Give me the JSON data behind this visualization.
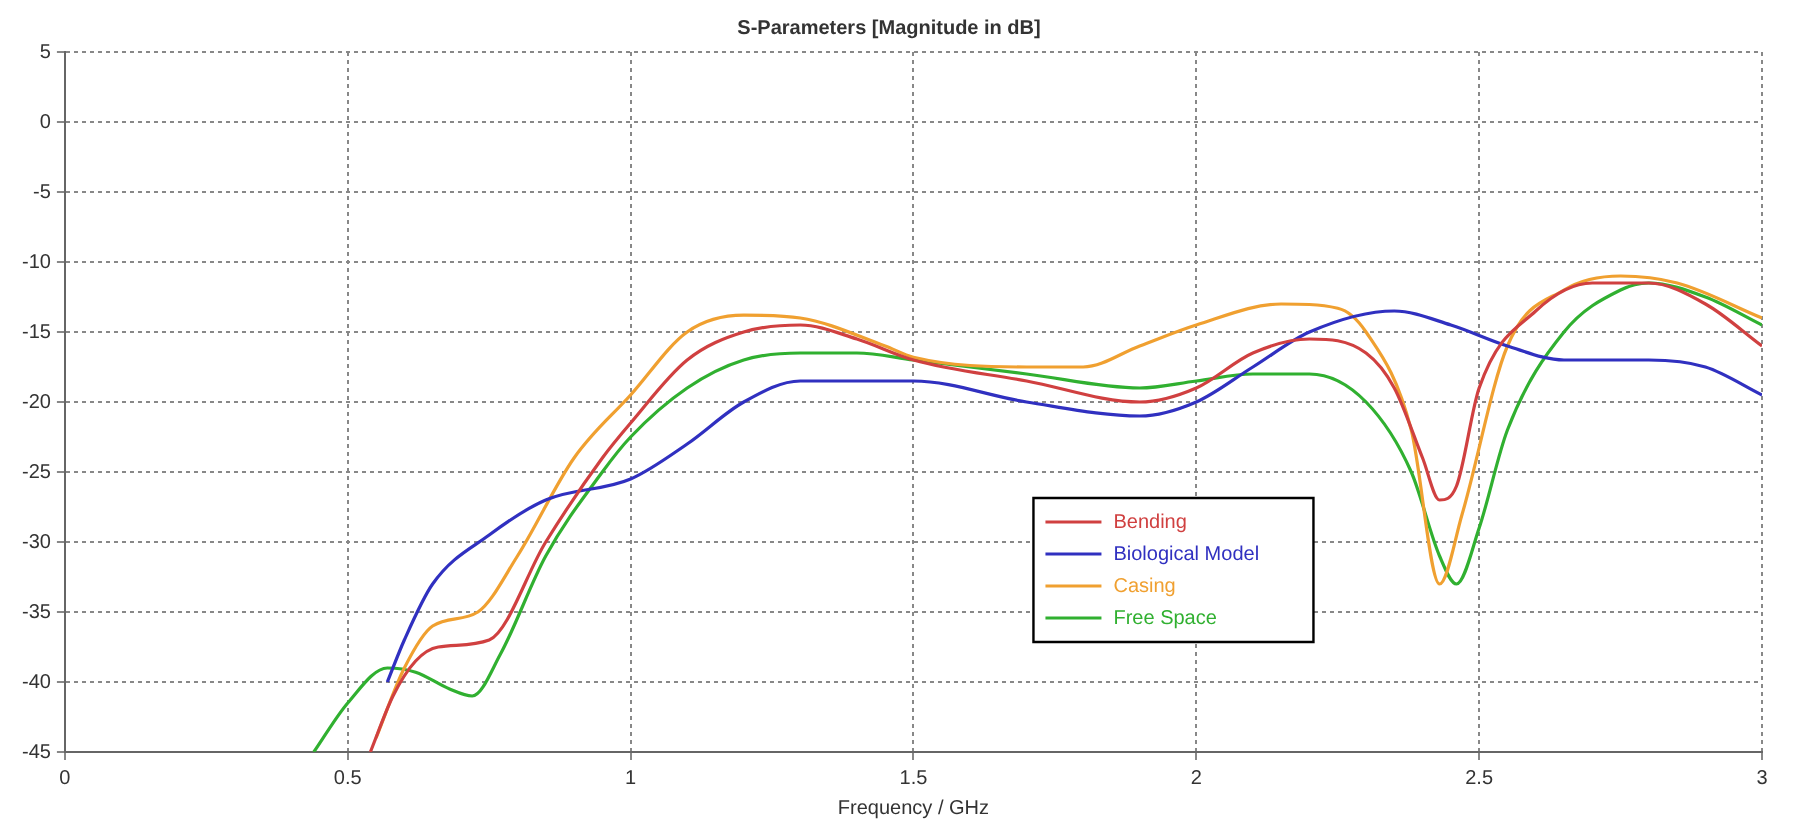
{
  "chart_data": {
    "type": "line",
    "title": "S-Parameters [Magnitude in dB]",
    "xlabel": "Frequency / GHz",
    "xlim": [
      0,
      3
    ],
    "xticks": [
      0,
      0.5,
      1,
      1.5,
      2,
      2.5,
      3
    ],
    "ylim": [
      -45,
      5
    ],
    "yticks": [
      -45,
      -40,
      -35,
      -30,
      -25,
      -20,
      -15,
      -10,
      -5,
      0,
      5
    ],
    "grid": true,
    "line_style": "solid",
    "marker": "none",
    "legend": "bottom",
    "series": [
      {
        "name": "Bending",
        "color": "#d04040",
        "x": [
          0.54,
          0.58,
          0.62,
          0.66,
          0.75,
          0.85,
          0.95,
          1.0,
          1.1,
          1.2,
          1.3,
          1.4,
          1.5,
          1.7,
          1.9,
          2.0,
          2.1,
          2.2,
          2.3,
          2.35,
          2.4,
          2.43,
          2.46,
          2.5,
          2.6,
          2.7,
          2.8,
          2.9,
          3.0
        ],
        "values": [
          -45,
          -41,
          -38.5,
          -37.5,
          -37,
          -30,
          -24,
          -21.5,
          -17,
          -15,
          -14.5,
          -15.5,
          -17,
          -18.5,
          -20,
          -19,
          -16.5,
          -15.5,
          -16.5,
          -19,
          -24,
          -27,
          -26,
          -19,
          -13.5,
          -11.5,
          -11.5,
          -13,
          -16
        ]
      },
      {
        "name": "Biological Model",
        "color": "#3030c0",
        "x": [
          0.57,
          0.6,
          0.65,
          0.75,
          0.85,
          1.0,
          1.1,
          1.2,
          1.3,
          1.5,
          1.7,
          1.9,
          2.0,
          2.1,
          2.2,
          2.35,
          2.45,
          2.55,
          2.65,
          2.8,
          2.9,
          3.0
        ],
        "values": [
          -40,
          -37,
          -33,
          -29.5,
          -27,
          -25.5,
          -23,
          -20,
          -18.5,
          -18.5,
          -20,
          -21,
          -20,
          -17.5,
          -15,
          -13.5,
          -14.5,
          -16,
          -17,
          -17,
          -17.5,
          -19.5
        ]
      },
      {
        "name": "Casing",
        "color": "#f0a030",
        "x": [
          0.55,
          0.6,
          0.65,
          0.73,
          0.8,
          0.9,
          1.0,
          1.1,
          1.2,
          1.3,
          1.45,
          1.5,
          1.7,
          1.8,
          1.9,
          2.0,
          2.15,
          2.25,
          2.3,
          2.38,
          2.43,
          2.47,
          2.55,
          2.65,
          2.75,
          2.85,
          3.0
        ],
        "values": [
          -44,
          -39,
          -36,
          -35,
          -31,
          -24,
          -19.5,
          -15,
          -13.8,
          -14,
          -16,
          -16.8,
          -17.5,
          -17.5,
          -16,
          -14.5,
          -13,
          -13.3,
          -15,
          -22,
          -33,
          -28,
          -16,
          -12,
          -11,
          -11.5,
          -14
        ]
      },
      {
        "name": "Free Space",
        "color": "#30b030",
        "x": [
          0.44,
          0.5,
          0.57,
          0.62,
          0.68,
          0.72,
          0.77,
          0.85,
          0.95,
          1.0,
          1.1,
          1.2,
          1.3,
          1.4,
          1.5,
          1.7,
          1.9,
          2.0,
          2.1,
          2.2,
          2.3,
          2.38,
          2.43,
          2.46,
          2.5,
          2.55,
          2.65,
          2.75,
          2.8,
          2.9,
          3.0
        ],
        "values": [
          -45,
          -41.5,
          -39,
          -39.3,
          -40.5,
          -41,
          -38,
          -31,
          -25,
          -22.5,
          -19,
          -17,
          -16.5,
          -16.5,
          -17,
          -18,
          -19,
          -18.5,
          -18,
          -18,
          -20,
          -25,
          -31,
          -33,
          -29,
          -22,
          -15,
          -12,
          -11.5,
          -12.5,
          -14.5
        ]
      }
    ]
  }
}
